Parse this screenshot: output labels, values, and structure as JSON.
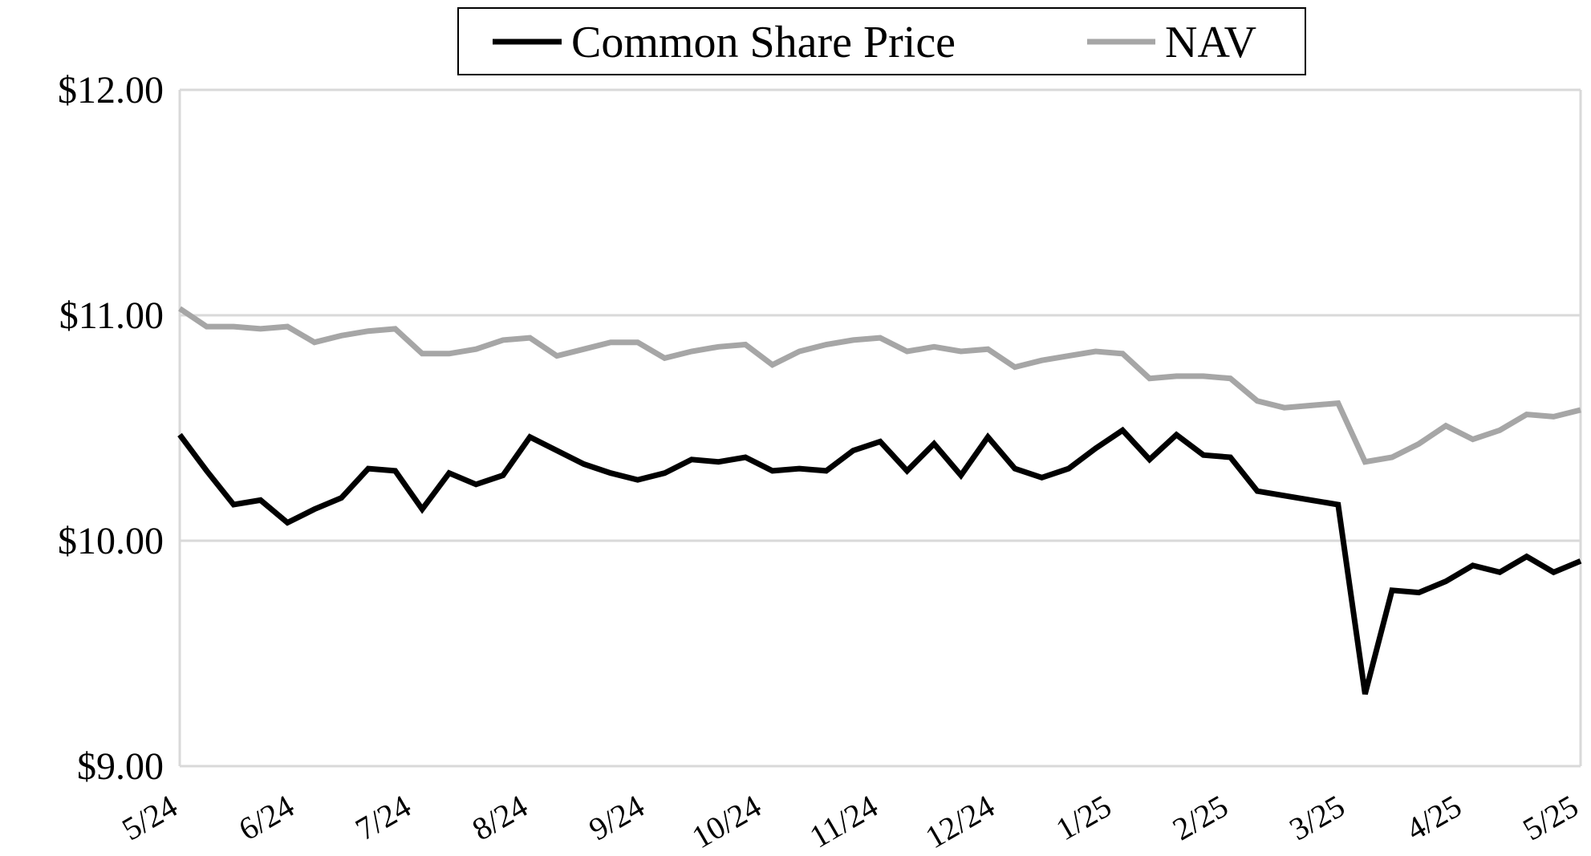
{
  "chart_data": {
    "type": "line",
    "title": "",
    "xlabel": "",
    "ylabel": "",
    "ylim": [
      9.0,
      12.0
    ],
    "y_ticks": [
      9.0,
      10.0,
      11.0,
      12.0
    ],
    "y_tick_labels": [
      "$9.00",
      "$10.00",
      "$11.00",
      "$12.00"
    ],
    "x_tick_labels": [
      "5/24",
      "6/24",
      "7/24",
      "8/24",
      "9/24",
      "10/24",
      "11/24",
      "12/24",
      "1/25",
      "2/25",
      "3/25",
      "4/25",
      "5/25"
    ],
    "grid": "horizontal",
    "legend_position": "top",
    "series": [
      {
        "name": "Common Share Price",
        "color": "#000000",
        "values": [
          10.47,
          10.31,
          10.16,
          10.18,
          10.08,
          10.14,
          10.19,
          10.32,
          10.31,
          10.14,
          10.3,
          10.25,
          10.29,
          10.46,
          10.4,
          10.34,
          10.3,
          10.27,
          10.3,
          10.36,
          10.35,
          10.37,
          10.31,
          10.32,
          10.31,
          10.4,
          10.44,
          10.31,
          10.43,
          10.29,
          10.46,
          10.32,
          10.28,
          10.32,
          10.41,
          10.49,
          10.36,
          10.47,
          10.38,
          10.37,
          10.22,
          10.2,
          10.18,
          10.16,
          9.32,
          9.78,
          9.77,
          9.82,
          9.89,
          9.86,
          9.93,
          9.86,
          9.91
        ]
      },
      {
        "name": "NAV",
        "color": "#a6a6a6",
        "values": [
          11.03,
          10.95,
          10.95,
          10.94,
          10.95,
          10.88,
          10.91,
          10.93,
          10.94,
          10.83,
          10.83,
          10.85,
          10.89,
          10.9,
          10.82,
          10.85,
          10.88,
          10.88,
          10.81,
          10.84,
          10.86,
          10.87,
          10.78,
          10.84,
          10.87,
          10.89,
          10.9,
          10.84,
          10.86,
          10.84,
          10.85,
          10.77,
          10.8,
          10.82,
          10.84,
          10.83,
          10.72,
          10.73,
          10.73,
          10.72,
          10.62,
          10.59,
          10.6,
          10.61,
          10.35,
          10.37,
          10.43,
          10.51,
          10.45,
          10.49,
          10.56,
          10.55,
          10.58
        ]
      }
    ]
  }
}
